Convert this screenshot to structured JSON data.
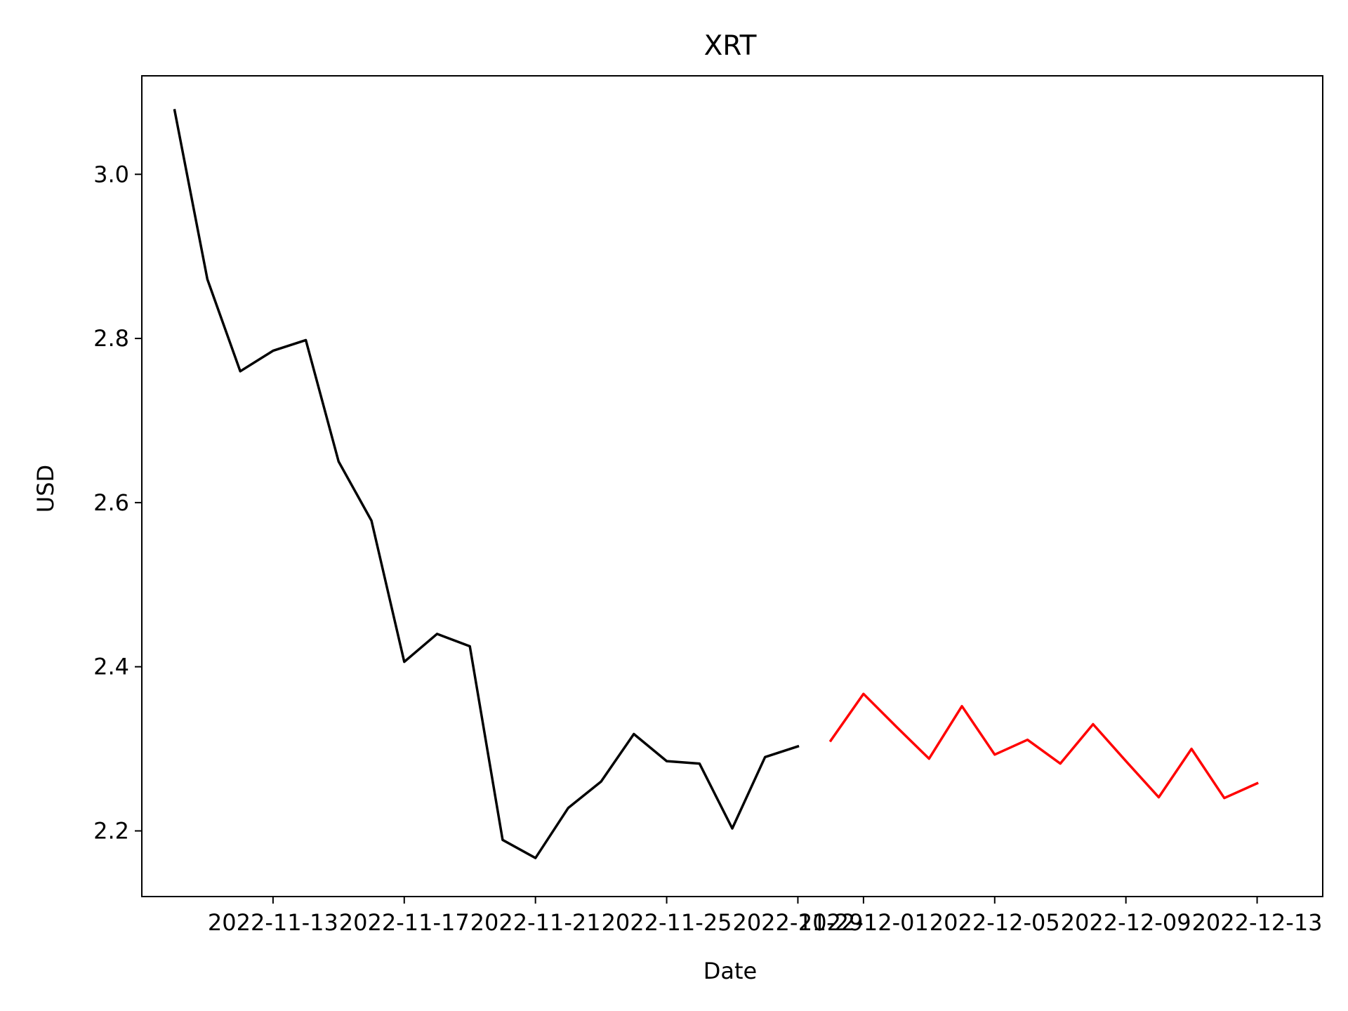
{
  "chart_data": {
    "type": "line",
    "title": "XRT",
    "xlabel": "Date",
    "ylabel": "USD",
    "grid": false,
    "x_range": [
      "2022-11-09",
      "2022-12-15"
    ],
    "ylim": [
      2.12,
      3.12
    ],
    "x_ticks": [
      "2022-11-13",
      "2022-11-17",
      "2022-11-21",
      "2022-11-25",
      "2022-11-29",
      "2022-12-01",
      "2022-12-05",
      "2022-12-09",
      "2022-12-13"
    ],
    "y_ticks": [
      "2.2",
      "2.4",
      "2.6",
      "2.8",
      "3.0"
    ],
    "series": [
      {
        "color": "#000000",
        "points": [
          {
            "x": "2022-11-10",
            "y": 3.078
          },
          {
            "x": "2022-11-11",
            "y": 2.872
          },
          {
            "x": "2022-11-12",
            "y": 2.76
          },
          {
            "x": "2022-11-13",
            "y": 2.785
          },
          {
            "x": "2022-11-14",
            "y": 2.798
          },
          {
            "x": "2022-11-15",
            "y": 2.65
          },
          {
            "x": "2022-11-16",
            "y": 2.578
          },
          {
            "x": "2022-11-17",
            "y": 2.406
          },
          {
            "x": "2022-11-18",
            "y": 2.44
          },
          {
            "x": "2022-11-19",
            "y": 2.425
          },
          {
            "x": "2022-11-20",
            "y": 2.189
          },
          {
            "x": "2022-11-21",
            "y": 2.167
          },
          {
            "x": "2022-11-22",
            "y": 2.228
          },
          {
            "x": "2022-11-23",
            "y": 2.26
          },
          {
            "x": "2022-11-24",
            "y": 2.318
          },
          {
            "x": "2022-11-25",
            "y": 2.285
          },
          {
            "x": "2022-11-26",
            "y": 2.282
          },
          {
            "x": "2022-11-27",
            "y": 2.203
          },
          {
            "x": "2022-11-28",
            "y": 2.29
          },
          {
            "x": "2022-11-29",
            "y": 2.303
          }
        ]
      },
      {
        "color": "#ff0000",
        "points": [
          {
            "x": "2022-11-30",
            "y": 2.31
          },
          {
            "x": "2022-12-01",
            "y": 2.367
          },
          {
            "x": "2022-12-02",
            "y": 2.327
          },
          {
            "x": "2022-12-03",
            "y": 2.288
          },
          {
            "x": "2022-12-04",
            "y": 2.352
          },
          {
            "x": "2022-12-05",
            "y": 2.293
          },
          {
            "x": "2022-12-06",
            "y": 2.311
          },
          {
            "x": "2022-12-07",
            "y": 2.282
          },
          {
            "x": "2022-12-08",
            "y": 2.33
          },
          {
            "x": "2022-12-09",
            "y": 2.285
          },
          {
            "x": "2022-12-10",
            "y": 2.241
          },
          {
            "x": "2022-12-11",
            "y": 2.3
          },
          {
            "x": "2022-12-12",
            "y": 2.24
          },
          {
            "x": "2022-12-13",
            "y": 2.258
          }
        ]
      }
    ]
  }
}
